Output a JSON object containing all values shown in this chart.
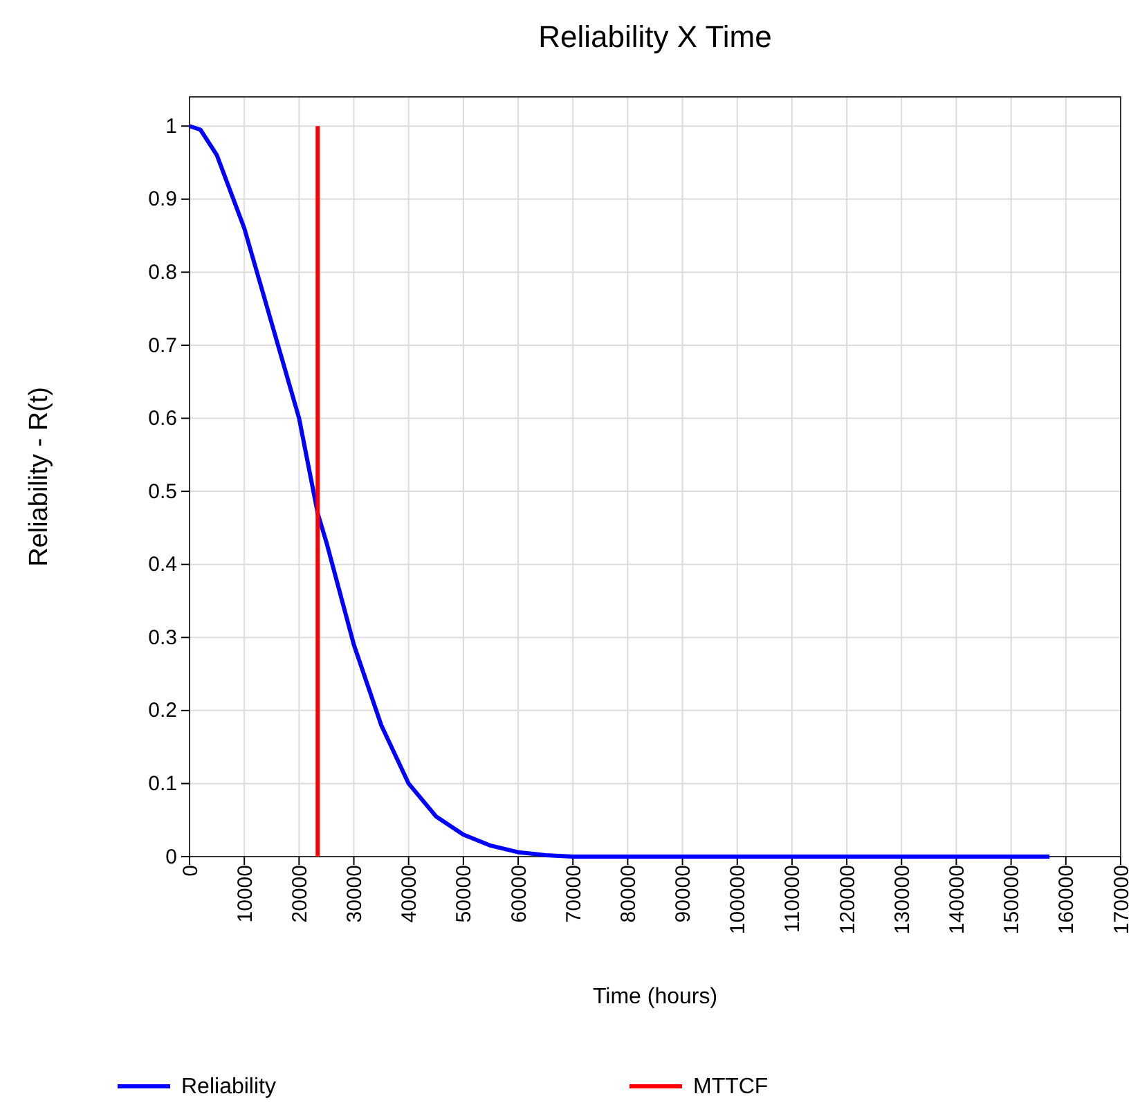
{
  "chart_data": {
    "type": "line",
    "title": "Reliability X Time",
    "xlabel": "Time (hours)",
    "ylabel": "Reliability  - R(t)",
    "xlim": [
      0,
      170000
    ],
    "xticks": [
      0,
      10000,
      20000,
      30000,
      40000,
      50000,
      60000,
      70000,
      80000,
      90000,
      100000,
      110000,
      120000,
      130000,
      140000,
      150000,
      160000,
      170000
    ],
    "ylim": [
      0,
      1.04
    ],
    "yticks": [
      0,
      0.1,
      0.2,
      0.3,
      0.4,
      0.5,
      0.6,
      0.7,
      0.8,
      0.9,
      1
    ],
    "grid": true,
    "legend": "bottom",
    "marker": "none",
    "line_style": "solid",
    "series": [
      {
        "name": "Reliability",
        "color": "#0000ff",
        "x": [
          0,
          2000,
          5000,
          8000,
          10000,
          15000,
          20000,
          23400,
          25000,
          30000,
          35000,
          40000,
          45000,
          50000,
          55000,
          60000,
          65000,
          70000,
          157000
        ],
        "values": [
          1,
          0.995,
          0.96,
          0.9,
          0.86,
          0.73,
          0.6,
          0.47,
          0.43,
          0.29,
          0.18,
          0.1,
          0.055,
          0.03,
          0.015,
          0.006,
          0.002,
          0,
          0
        ]
      },
      {
        "name": "MTTCF",
        "color": "#ff0000",
        "x": [
          23400,
          23400
        ],
        "values": [
          0,
          1
        ]
      }
    ]
  }
}
